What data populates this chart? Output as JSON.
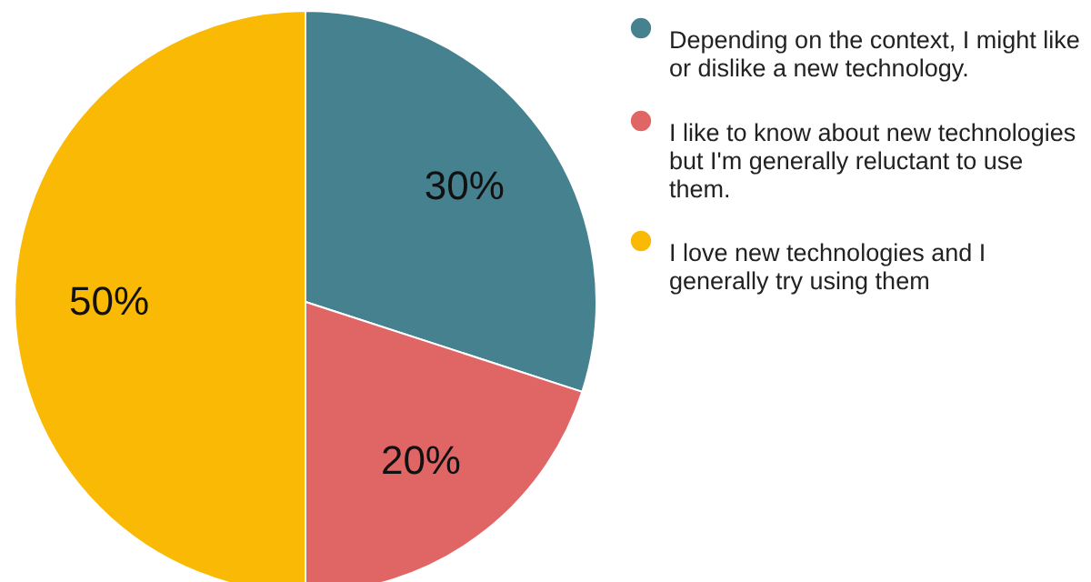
{
  "chart_data": {
    "type": "pie",
    "categories": [
      "Depending on the context, I might like or dislike a new technology.",
      "I like to know about new technologies but I'm generally reluctant to use them.",
      "I love new technologies and I generally try using them"
    ],
    "values": [
      30,
      20,
      50
    ],
    "colors": [
      "#45818e",
      "#e06666",
      "#f9b904"
    ],
    "value_labels": [
      "30%",
      "20%",
      "50%"
    ],
    "legend": "right"
  }
}
